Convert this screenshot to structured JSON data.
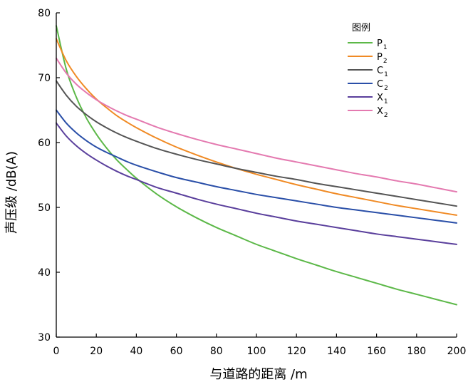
{
  "chart_data": {
    "type": "line",
    "title": "",
    "xlabel": "与道路的距离 /m",
    "ylabel": "声压级 /dB(A)",
    "xlim": [
      0,
      200
    ],
    "ylim": [
      30,
      80
    ],
    "xticks": [
      0,
      20,
      40,
      60,
      80,
      100,
      120,
      140,
      160,
      180,
      200
    ],
    "yticks": [
      30,
      40,
      50,
      60,
      70,
      80
    ],
    "grid": false,
    "legend": {
      "title": "图例",
      "placement": "top-right"
    },
    "series": [
      {
        "name": "P1",
        "name_main": "P",
        "name_sub": "1",
        "color": "#5cb848",
        "x": [
          0,
          5,
          10,
          15,
          20,
          25,
          30,
          35,
          40,
          50,
          60,
          70,
          80,
          90,
          100,
          110,
          120,
          130,
          140,
          150,
          160,
          170,
          180,
          190,
          200
        ],
        "y": [
          78.0,
          71.3,
          67.0,
          63.8,
          61.3,
          59.2,
          57.4,
          55.9,
          54.5,
          52.1,
          50.1,
          48.4,
          46.9,
          45.6,
          44.3,
          43.2,
          42.1,
          41.1,
          40.1,
          39.2,
          38.3,
          37.4,
          36.6,
          35.8,
          35.0
        ]
      },
      {
        "name": "P2",
        "name_main": "P",
        "name_sub": "2",
        "color": "#f08a24",
        "x": [
          0,
          5,
          10,
          15,
          20,
          25,
          30,
          35,
          40,
          50,
          60,
          70,
          80,
          90,
          100,
          110,
          120,
          130,
          140,
          150,
          160,
          170,
          180,
          190,
          200
        ],
        "y": [
          76.0,
          72.6,
          70.2,
          68.3,
          66.7,
          65.4,
          64.2,
          63.2,
          62.3,
          60.7,
          59.3,
          58.1,
          57.0,
          56.0,
          55.1,
          54.3,
          53.5,
          52.8,
          52.1,
          51.5,
          50.9,
          50.3,
          49.8,
          49.3,
          48.8
        ]
      },
      {
        "name": "C1",
        "name_main": "C",
        "name_sub": "1",
        "color": "#555555",
        "x": [
          0,
          5,
          10,
          15,
          20,
          25,
          30,
          35,
          40,
          50,
          60,
          70,
          80,
          90,
          100,
          110,
          120,
          130,
          140,
          150,
          160,
          170,
          180,
          190,
          200
        ],
        "y": [
          69.5,
          67.3,
          65.6,
          64.3,
          63.2,
          62.3,
          61.5,
          60.8,
          60.2,
          59.1,
          58.2,
          57.4,
          56.7,
          56.0,
          55.4,
          54.8,
          54.3,
          53.7,
          53.2,
          52.7,
          52.2,
          51.7,
          51.2,
          50.7,
          50.2
        ]
      },
      {
        "name": "C2",
        "name_main": "C",
        "name_sub": "2",
        "color": "#2a4fa8",
        "x": [
          0,
          5,
          10,
          15,
          20,
          25,
          30,
          35,
          40,
          50,
          60,
          70,
          80,
          90,
          100,
          110,
          120,
          130,
          140,
          150,
          160,
          170,
          180,
          190,
          200
        ],
        "y": [
          65.0,
          63.0,
          61.5,
          60.3,
          59.3,
          58.5,
          57.8,
          57.1,
          56.5,
          55.5,
          54.6,
          53.9,
          53.2,
          52.6,
          52.0,
          51.5,
          51.0,
          50.5,
          50.0,
          49.6,
          49.2,
          48.8,
          48.4,
          48.0,
          47.6
        ]
      },
      {
        "name": "X1",
        "name_main": "X",
        "name_sub": "1",
        "color": "#5a3f9c",
        "x": [
          0,
          5,
          10,
          15,
          20,
          25,
          30,
          35,
          40,
          50,
          60,
          70,
          80,
          90,
          100,
          110,
          120,
          130,
          140,
          150,
          160,
          170,
          180,
          190,
          200
        ],
        "y": [
          63.0,
          61.0,
          59.5,
          58.3,
          57.3,
          56.4,
          55.6,
          54.9,
          54.3,
          53.1,
          52.2,
          51.3,
          50.5,
          49.8,
          49.1,
          48.5,
          47.9,
          47.4,
          46.9,
          46.4,
          45.9,
          45.5,
          45.1,
          44.7,
          44.3
        ]
      },
      {
        "name": "X2",
        "name_main": "X",
        "name_sub": "2",
        "color": "#e47ab0",
        "x": [
          0,
          5,
          10,
          15,
          20,
          25,
          30,
          35,
          40,
          50,
          60,
          70,
          80,
          90,
          100,
          110,
          120,
          130,
          140,
          150,
          160,
          170,
          180,
          190,
          200
        ],
        "y": [
          73.0,
          70.7,
          69.0,
          67.7,
          66.6,
          65.7,
          64.9,
          64.2,
          63.6,
          62.4,
          61.4,
          60.5,
          59.7,
          59.0,
          58.3,
          57.6,
          57.0,
          56.4,
          55.8,
          55.2,
          54.7,
          54.1,
          53.6,
          53.0,
          52.4
        ]
      }
    ]
  }
}
